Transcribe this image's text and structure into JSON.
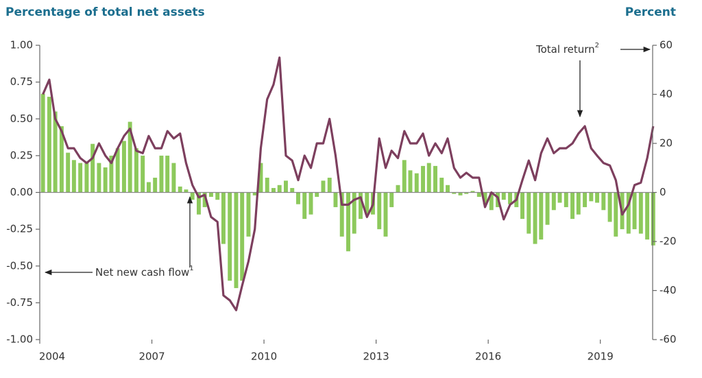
{
  "chart_data": {
    "type": "bar-line",
    "y_label": "Percentage of total net assets",
    "y2_label": "Percent",
    "xlim": [
      2004,
      2020.4
    ],
    "xticks": [
      2004,
      2007,
      2010,
      2013,
      2016,
      2019
    ],
    "ylim": [
      -1,
      1
    ],
    "yticks": [
      {
        "value": 1,
        "label": "1.00"
      },
      {
        "value": 0.75,
        "label": "0.75"
      },
      {
        "value": 0.5,
        "label": "0.50"
      },
      {
        "value": 0.25,
        "label": "0.25"
      },
      {
        "value": 0,
        "label": "0.00"
      },
      {
        "value": -0.25,
        "label": "-0.25"
      },
      {
        "value": -0.5,
        "label": "-0.50"
      },
      {
        "value": -0.75,
        "label": "-0.75"
      },
      {
        "value": -1,
        "label": "-1.00"
      }
    ],
    "y2lim": [
      -60,
      60
    ],
    "y2ticks": [
      60,
      40,
      20,
      0,
      -20,
      -40,
      -60
    ],
    "x": [
      2004,
      2004.17,
      2004.33,
      2004.5,
      2004.67,
      2004.83,
      2005,
      2005.17,
      2005.33,
      2005.5,
      2005.67,
      2005.83,
      2006,
      2006.17,
      2006.33,
      2006.5,
      2006.67,
      2006.83,
      2007,
      2007.17,
      2007.33,
      2007.5,
      2007.67,
      2007.83,
      2008,
      2008.17,
      2008.33,
      2008.5,
      2008.67,
      2008.83,
      2009,
      2009.17,
      2009.33,
      2009.5,
      2009.67,
      2009.83,
      2010,
      2010.17,
      2010.33,
      2010.5,
      2010.67,
      2010.83,
      2011,
      2011.17,
      2011.33,
      2011.5,
      2011.67,
      2011.83,
      2012,
      2012.17,
      2012.33,
      2012.5,
      2012.67,
      2012.83,
      2013,
      2013.17,
      2013.33,
      2013.5,
      2013.67,
      2013.83,
      2014,
      2014.17,
      2014.33,
      2014.5,
      2014.67,
      2014.83,
      2015,
      2015.17,
      2015.33,
      2015.5,
      2015.67,
      2015.83,
      2016,
      2016.17,
      2016.33,
      2016.5,
      2016.67,
      2016.83,
      2017,
      2017.17,
      2017.33,
      2017.5,
      2017.67,
      2017.83,
      2018,
      2018.17,
      2018.33,
      2018.5,
      2018.67,
      2018.83,
      2019,
      2019.17,
      2019.33,
      2019.5,
      2019.67,
      2019.83,
      2020,
      2020.17,
      2020.33
    ],
    "series": [
      {
        "name": "Net new cash flow",
        "note": "1",
        "color": "#8dc95c",
        "kind": "bar",
        "axis": "y",
        "values": [
          0.67,
          0.65,
          0.55,
          0.45,
          0.27,
          0.22,
          0.2,
          0.2,
          0.33,
          0.2,
          0.17,
          0.25,
          0.3,
          0.35,
          0.48,
          0.3,
          0.25,
          0.07,
          0.1,
          0.25,
          0.25,
          0.2,
          0.04,
          0.02,
          -0.05,
          -0.15,
          -0.1,
          -0.03,
          -0.05,
          -0.35,
          -0.6,
          -0.65,
          -0.6,
          -0.3,
          -0.02,
          0.2,
          0.1,
          0.03,
          0.05,
          0.08,
          0.03,
          -0.08,
          -0.18,
          -0.15,
          -0.03,
          0.08,
          0.1,
          -0.1,
          -0.3,
          -0.4,
          -0.28,
          -0.18,
          -0.15,
          -0.15,
          -0.25,
          -0.3,
          -0.1,
          0.05,
          0.22,
          0.15,
          0.13,
          0.18,
          0.2,
          0.18,
          0.1,
          0.05,
          -0.01,
          -0.02,
          -0.01,
          0.01,
          -0.03,
          -0.08,
          -0.12,
          -0.1,
          -0.05,
          -0.08,
          -0.1,
          -0.18,
          -0.28,
          -0.35,
          -0.32,
          -0.22,
          -0.12,
          -0.07,
          -0.1,
          -0.18,
          -0.15,
          -0.1,
          -0.06,
          -0.07,
          -0.12,
          -0.2,
          -0.3,
          -0.25,
          -0.28,
          -0.25,
          -0.28,
          -0.32,
          -0.36
        ]
      },
      {
        "name": "Total return",
        "note": "2",
        "color": "#7d3f5e",
        "kind": "line",
        "axis": "y2",
        "values": [
          40,
          46,
          30,
          25,
          18,
          18,
          14,
          12,
          14,
          20,
          15,
          12,
          18,
          23,
          26,
          17,
          16,
          23,
          18,
          18,
          25,
          22,
          24,
          12,
          3,
          -2,
          -1,
          -10,
          -12,
          -42,
          -44,
          -48,
          -38,
          -28,
          -15,
          18,
          38,
          44,
          55,
          15,
          13,
          5,
          15,
          10,
          20,
          20,
          30,
          15,
          -5,
          -5,
          -3,
          -2,
          -10,
          -5,
          22,
          10,
          17,
          14,
          25,
          20,
          20,
          24,
          15,
          20,
          16,
          22,
          10,
          6,
          8,
          6,
          6,
          -6,
          0,
          -2,
          -11,
          -5,
          -3,
          5,
          13,
          5,
          16,
          22,
          16,
          18,
          18,
          20,
          24,
          27,
          18,
          15,
          12,
          11,
          5,
          -9,
          -5,
          3,
          4,
          14,
          27
        ]
      }
    ]
  }
}
